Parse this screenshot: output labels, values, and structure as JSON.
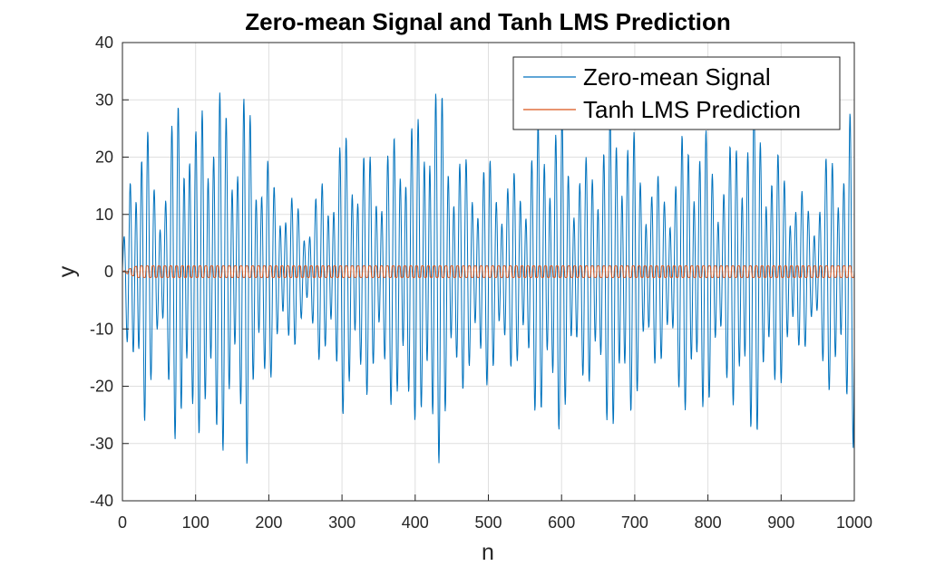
{
  "chart_data": {
    "type": "line",
    "title": "Zero-mean Signal and Tanh LMS Prediction",
    "xlabel": "n",
    "ylabel": "y",
    "xlim": [
      0,
      1000
    ],
    "ylim": [
      -40,
      40
    ],
    "xticks": [
      0,
      100,
      200,
      300,
      400,
      500,
      600,
      700,
      800,
      900,
      1000
    ],
    "yticks": [
      -40,
      -30,
      -20,
      -10,
      0,
      10,
      20,
      30,
      40
    ],
    "grid": true,
    "legend_position": "top-right",
    "series": [
      {
        "name": "Zero-mean Signal",
        "color": "#0072BD",
        "x": [
          0,
          10,
          20,
          30,
          40,
          50,
          60,
          70,
          80,
          90,
          100,
          110,
          120,
          130,
          140,
          150,
          160,
          170,
          180,
          190,
          200,
          210,
          220,
          230,
          240,
          250,
          260,
          270,
          280,
          290,
          300,
          310,
          320,
          330,
          340,
          350,
          360,
          370,
          380,
          390,
          400,
          410,
          420,
          430,
          440,
          450,
          460,
          470,
          480,
          490,
          500,
          510,
          520,
          530,
          540,
          550,
          560,
          570,
          580,
          590,
          600,
          610,
          620,
          630,
          640,
          650,
          660,
          670,
          680,
          690,
          700,
          710,
          720,
          730,
          740,
          750,
          760,
          770,
          780,
          790,
          800,
          810,
          820,
          830,
          840,
          850,
          860,
          870,
          880,
          890,
          900,
          910,
          920,
          930,
          940,
          950,
          960,
          970,
          980,
          990,
          1000
        ],
        "envelope": [
          3,
          18,
          28,
          31,
          18,
          15,
          20,
          28,
          37,
          32,
          25,
          33,
          34,
          33,
          31,
          29,
          28,
          34,
          26,
          23,
          20,
          15,
          16,
          14,
          12,
          10,
          12,
          16,
          18,
          20,
          25,
          25,
          23,
          22,
          21,
          20,
          22,
          24,
          28,
          31,
          26,
          30,
          38,
          35,
          30,
          25,
          22,
          20,
          19,
          21,
          20,
          19,
          18,
          17,
          18,
          20,
          24,
          27,
          28,
          30,
          28,
          24,
          20,
          19,
          22,
          25,
          27,
          29,
          31,
          28,
          24,
          20,
          18,
          17,
          16,
          18,
          22,
          26,
          28,
          27,
          24,
          20,
          19,
          22,
          27,
          30,
          31,
          28,
          25,
          22,
          20,
          18,
          16,
          14,
          12,
          15,
          20,
          22,
          24,
          26,
          32
        ]
      },
      {
        "name": "Tanh LMS Prediction",
        "color": "#D95319",
        "amplitude": 1,
        "period": 8
      }
    ]
  }
}
